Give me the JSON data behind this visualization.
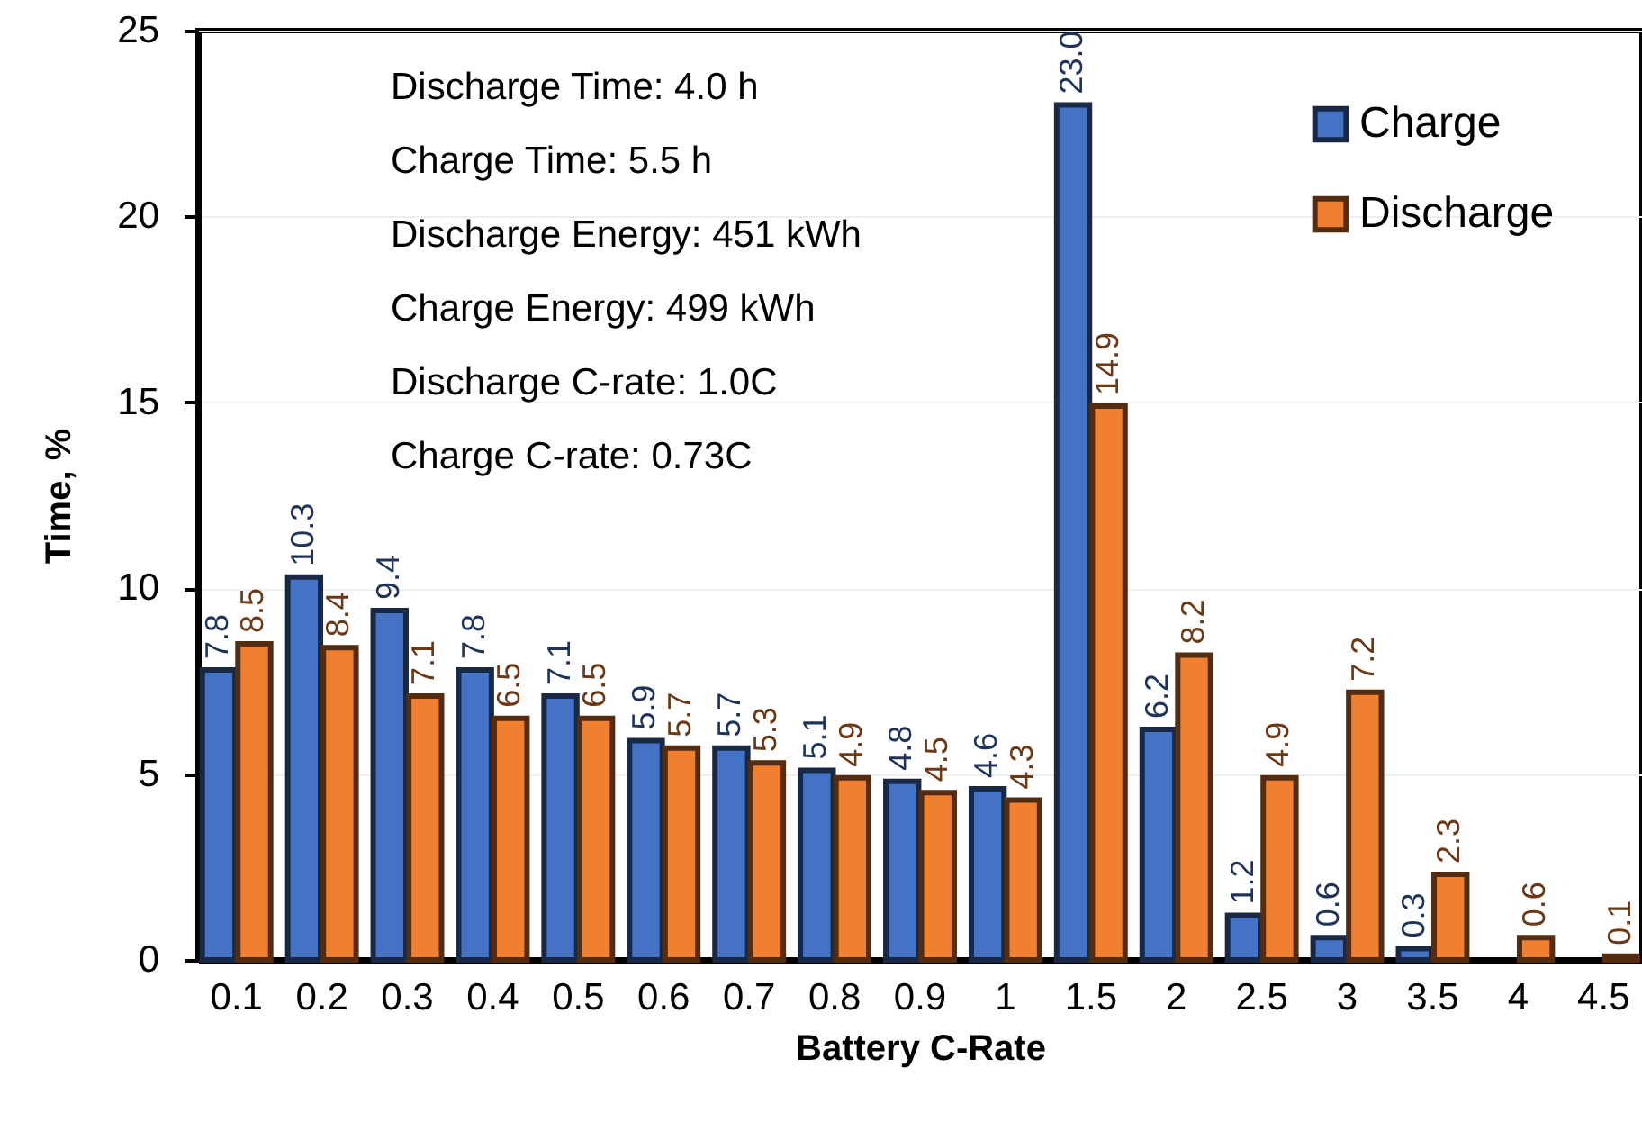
{
  "chart_data": {
    "type": "bar",
    "xlabel": "Battery C-Rate",
    "ylabel": "Time, %",
    "categories": [
      "0.1",
      "0.2",
      "0.3",
      "0.4",
      "0.5",
      "0.6",
      "0.7",
      "0.8",
      "0.9",
      "1",
      "1.5",
      "2",
      "2.5",
      "3",
      "3.5",
      "4",
      "4.5"
    ],
    "series": [
      {
        "name": "Charge",
        "color": "#4472c4",
        "values": [
          7.8,
          10.3,
          9.4,
          7.8,
          7.1,
          5.9,
          5.7,
          5.1,
          4.8,
          4.6,
          23.0,
          6.2,
          1.2,
          0.6,
          0.3,
          null,
          null
        ],
        "value_labels": [
          "7.8",
          "10.3",
          "9.4",
          "7.8",
          "7.1",
          "5.9",
          "5.7",
          "5.1",
          "4.8",
          "4.6",
          "23.0",
          "6.2",
          "1.2",
          "0.6",
          "0.3",
          null,
          null
        ]
      },
      {
        "name": "Discharge",
        "color": "#f07f30",
        "values": [
          8.5,
          8.4,
          7.1,
          6.5,
          6.5,
          5.7,
          5.3,
          4.9,
          4.5,
          4.3,
          14.9,
          8.2,
          4.9,
          7.2,
          2.3,
          0.6,
          0.1
        ],
        "value_labels": [
          "8.5",
          "8.4",
          "7.1",
          "6.5",
          "6.5",
          "5.7",
          "5.3",
          "4.9",
          "4.5",
          "4.3",
          "14.9",
          "8.2",
          "4.9",
          "7.2",
          "2.3",
          "0.6",
          "0.1"
        ]
      }
    ],
    "ylim": [
      0,
      25
    ],
    "yticks": [
      0,
      5,
      10,
      15,
      20,
      25
    ],
    "grid": "y",
    "legend": "top right",
    "annotations": [
      "Discharge Time: 4.0 h",
      "Charge Time: 5.5 h",
      "Discharge Energy: 451 kWh",
      "Charge Energy: 499 kWh",
      "Discharge C-rate: 1.0C",
      "Charge C-rate: 0.73C"
    ]
  }
}
